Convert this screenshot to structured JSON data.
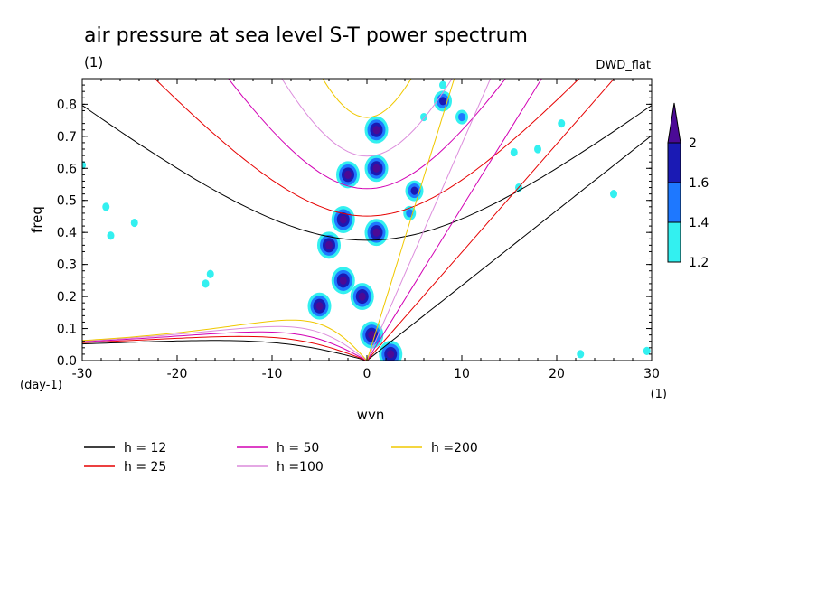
{
  "chart_data": {
    "type": "heatmap",
    "title": "air pressure at sea level S-T power spectrum",
    "title_unit": "(1)",
    "source_label": "DWD_flat",
    "xlabel": "wvn",
    "ylabel": "freq",
    "x_unit": "(1)",
    "y_unit": "(day-1)",
    "xlim": [
      -30,
      30
    ],
    "ylim": [
      0,
      0.88
    ],
    "xticks": [
      "-30",
      "-20",
      "-10",
      "0",
      "10",
      "20",
      "30"
    ],
    "yticks": [
      "0.0",
      "0.1",
      "0.2",
      "0.3",
      "0.4",
      "0.5",
      "0.6",
      "0.7",
      "0.8"
    ],
    "colorbar": {
      "levels": [
        "1.2",
        "1.4",
        "1.6",
        "2"
      ],
      "colors": [
        "#33f0f0",
        "#1e78ff",
        "#1a1ab4",
        "#4b0a96"
      ]
    },
    "curves": [
      {
        "label": "h = 12",
        "color": "#000000",
        "wvn_for_freq_zero": 0
      },
      {
        "label": "h = 25",
        "color": "#e60000",
        "wvn_for_freq_zero": 0
      },
      {
        "label": "h = 50",
        "color": "#d200b4",
        "wvn_for_freq_zero": 0
      },
      {
        "label": "h =100",
        "color": "#dc8cdc",
        "wvn_for_freq_zero": 0
      },
      {
        "label": "h =200",
        "color": "#f0c800",
        "wvn_for_freq_zero": 0
      }
    ],
    "blobs": [
      {
        "x": 1,
        "y": 0.72,
        "level": 4
      },
      {
        "x": 1,
        "y": 0.6,
        "level": 4
      },
      {
        "x": 1,
        "y": 0.4,
        "level": 4
      },
      {
        "x": 2.5,
        "y": 0.02,
        "level": 4
      },
      {
        "x": 0.5,
        "y": 0.08,
        "level": 4
      },
      {
        "x": -0.5,
        "y": 0.2,
        "level": 4
      },
      {
        "x": -2.5,
        "y": 0.25,
        "level": 4
      },
      {
        "x": -5,
        "y": 0.17,
        "level": 4
      },
      {
        "x": -4,
        "y": 0.36,
        "level": 4
      },
      {
        "x": -2.5,
        "y": 0.44,
        "level": 4
      },
      {
        "x": -2,
        "y": 0.58,
        "level": 4
      },
      {
        "x": 8,
        "y": 0.81,
        "level": 3
      },
      {
        "x": 5,
        "y": 0.53,
        "level": 3
      },
      {
        "x": 10,
        "y": 0.76,
        "level": 2
      },
      {
        "x": 4.5,
        "y": 0.46,
        "level": 2
      },
      {
        "x": 18,
        "y": 0.66,
        "level": 1
      },
      {
        "x": 15.5,
        "y": 0.65,
        "level": 1
      },
      {
        "x": 22.5,
        "y": 0.02,
        "level": 1
      },
      {
        "x": 29.5,
        "y": 0.03,
        "level": 1
      },
      {
        "x": -27.5,
        "y": 0.48,
        "level": 1
      },
      {
        "x": -16.5,
        "y": 0.27,
        "level": 1
      },
      {
        "x": -17,
        "y": 0.24,
        "level": 1
      },
      {
        "x": -24.5,
        "y": 0.43,
        "level": 1
      },
      {
        "x": -27,
        "y": 0.39,
        "level": 1
      },
      {
        "x": 26,
        "y": 0.52,
        "level": 1
      },
      {
        "x": 16,
        "y": 0.54,
        "level": 1
      },
      {
        "x": -30,
        "y": 0.61,
        "level": 1
      },
      {
        "x": 20.5,
        "y": 0.74,
        "level": 1
      },
      {
        "x": 8,
        "y": 0.86,
        "level": 1
      },
      {
        "x": 6,
        "y": 0.76,
        "level": 1
      }
    ]
  }
}
